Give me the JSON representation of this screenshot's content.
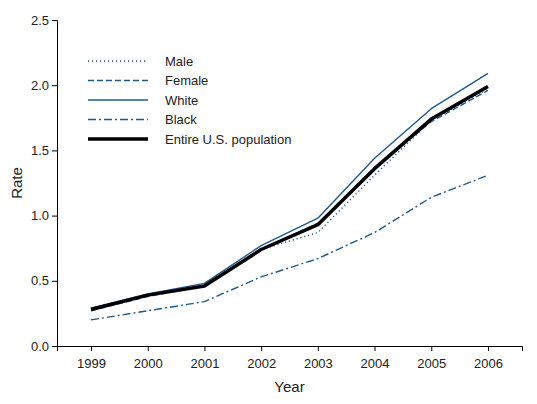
{
  "chart_data": {
    "type": "line",
    "x_label": "Year",
    "y_label": "Rate",
    "x": [
      1999,
      2000,
      2001,
      2002,
      2003,
      2004,
      2005,
      2006
    ],
    "xlim": [
      1998.4,
      2006.6
    ],
    "xticks": [
      1999,
      2000,
      2001,
      2002,
      2003,
      2004,
      2005,
      2006
    ],
    "ylim": [
      0,
      2.5
    ],
    "yticks": [
      {
        "value": 0,
        "label": "0.0"
      },
      0.5,
      {
        "value": 1,
        "label": "1.0"
      },
      1.5,
      {
        "value": 2,
        "label": "2.0"
      },
      2.5
    ],
    "legend": "upper left",
    "series": [
      {
        "name": "Male",
        "color": "#1f5a8c",
        "line_style": "dotted",
        "values": [
          0.29,
          0.39,
          0.46,
          0.74,
          0.87,
          1.31,
          1.73,
          1.97
        ]
      },
      {
        "name": "Female",
        "color": "#1f5a8c",
        "line_style": "dashed",
        "values": [
          0.27,
          0.38,
          0.46,
          0.74,
          0.94,
          1.37,
          1.72,
          1.96
        ]
      },
      {
        "name": "White",
        "color": "#1f5a8c",
        "line_style": "solid",
        "values": [
          0.29,
          0.4,
          0.48,
          0.77,
          0.98,
          1.44,
          1.82,
          2.09
        ]
      },
      {
        "name": "Black",
        "color": "#1f5a8c",
        "line_style": "dashdot",
        "values": [
          0.2,
          0.27,
          0.34,
          0.53,
          0.67,
          0.87,
          1.14,
          1.31
        ]
      },
      {
        "name": "Entire U.S. population",
        "color": "#000000",
        "line_style": "thick",
        "values": [
          0.28,
          0.39,
          0.46,
          0.74,
          0.93,
          1.36,
          1.74,
          1.99
        ]
      }
    ]
  }
}
